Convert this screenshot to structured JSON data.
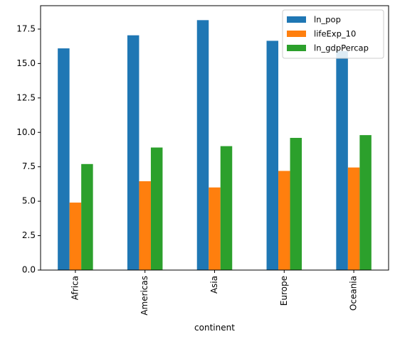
{
  "chart_data": {
    "type": "bar",
    "title": "",
    "xlabel": "continent",
    "ylabel": "",
    "categories": [
      "Africa",
      "Americas",
      "Asia",
      "Europe",
      "Oceania"
    ],
    "series": [
      {
        "name": "ln_pop",
        "color": "#1f77b4",
        "values": [
          16.1,
          17.05,
          18.15,
          16.65,
          15.9
        ]
      },
      {
        "name": "lifeExp_10",
        "color": "#ff7f0e",
        "values": [
          4.9,
          6.45,
          6.0,
          7.2,
          7.45
        ]
      },
      {
        "name": "ln_gdpPercap",
        "color": "#2ca02c",
        "values": [
          7.7,
          8.9,
          9.0,
          9.6,
          9.8
        ]
      }
    ],
    "ylim": [
      0,
      19.2
    ],
    "yticks": [
      0.0,
      2.5,
      5.0,
      7.5,
      10.0,
      12.5,
      15.0,
      17.5
    ],
    "ytick_labels": [
      "0.0",
      "2.5",
      "5.0",
      "7.5",
      "10.0",
      "12.5",
      "15.0",
      "17.5"
    ],
    "grid": false,
    "legend_position": "top-right",
    "xtick_rotation": "vertical"
  }
}
